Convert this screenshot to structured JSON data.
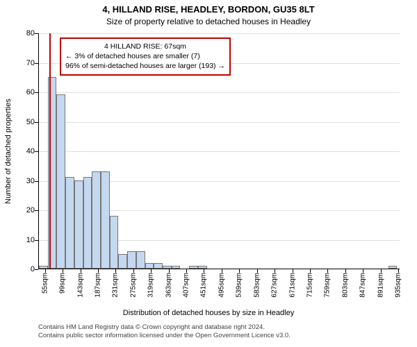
{
  "title_main": "4, HILLAND RISE, HEADLEY, BORDON, GU35 8LT",
  "title_sub": "Size of property relative to detached houses in Headley",
  "y_axis_label": "Number of detached properties",
  "x_axis_label": "Distribution of detached houses by size in Headley",
  "chart": {
    "type": "histogram",
    "ylim": [
      0,
      80
    ],
    "ytick_step": 10,
    "yticks": [
      0,
      10,
      20,
      30,
      40,
      50,
      60,
      70,
      80
    ],
    "xlim": [
      40,
      940
    ],
    "xtick_step": 44,
    "xtick_start": 55,
    "xtick_suffix": "sqm",
    "bin_width": 22,
    "bin_start": 40,
    "bar_color": "#c4d8f0",
    "bar_border": "#777777",
    "grid_color": "#e0e0e0",
    "background_color": "#ffffff",
    "axis_color": "#000000",
    "bars": [
      {
        "x": 40,
        "count": 1
      },
      {
        "x": 62,
        "count": 65
      },
      {
        "x": 84,
        "count": 59
      },
      {
        "x": 106,
        "count": 31
      },
      {
        "x": 128,
        "count": 30
      },
      {
        "x": 150,
        "count": 31
      },
      {
        "x": 172,
        "count": 33
      },
      {
        "x": 194,
        "count": 33
      },
      {
        "x": 216,
        "count": 18
      },
      {
        "x": 238,
        "count": 5
      },
      {
        "x": 260,
        "count": 6
      },
      {
        "x": 282,
        "count": 6
      },
      {
        "x": 304,
        "count": 2
      },
      {
        "x": 326,
        "count": 2
      },
      {
        "x": 348,
        "count": 1
      },
      {
        "x": 370,
        "count": 1
      },
      {
        "x": 392,
        "count": 0
      },
      {
        "x": 414,
        "count": 1
      },
      {
        "x": 436,
        "count": 1
      },
      {
        "x": 458,
        "count": 0
      },
      {
        "x": 910,
        "count": 1
      }
    ],
    "reference_line": {
      "x": 67,
      "color": "#c00000",
      "width": 2
    },
    "annotation_box": {
      "border_color": "#c00000",
      "lines": [
        "4 HILLAND RISE: 67sqm",
        "← 3% of detached houses are smaller (7)",
        "96% of semi-detached houses are larger (193) →"
      ]
    }
  },
  "footer": {
    "line1": "Contains HM Land Registry data © Crown copyright and database right 2024.",
    "line2": "Contains public sector information licensed under the Open Government Licence v3.0."
  }
}
